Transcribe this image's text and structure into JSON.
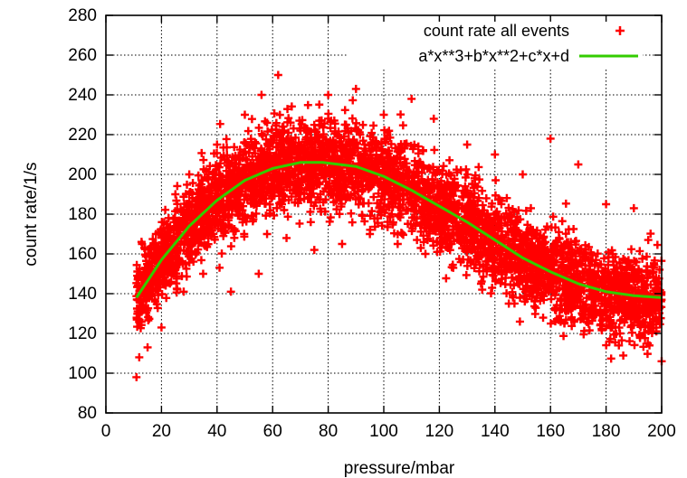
{
  "chart_data": {
    "type": "scatter",
    "title": "",
    "xlabel": "pressure/mbar",
    "ylabel": "count rate/1/s",
    "xlim": [
      0,
      200
    ],
    "ylim": [
      80,
      280
    ],
    "xticks": [
      0,
      20,
      40,
      60,
      80,
      100,
      120,
      140,
      160,
      180,
      200
    ],
    "yticks": [
      80,
      100,
      120,
      140,
      160,
      180,
      200,
      220,
      240,
      260,
      280
    ],
    "grid": true,
    "legend_position": "top-right",
    "series": [
      {
        "name": "count rate all events",
        "kind": "scatter",
        "marker": "+",
        "color": "#ff0000",
        "x_range": [
          11,
          200
        ],
        "points": [
          [
            11,
            98
          ],
          [
            12,
            108
          ],
          [
            13,
            165
          ],
          [
            15,
            113
          ],
          [
            18,
            170
          ],
          [
            20,
            123
          ],
          [
            25,
            190
          ],
          [
            28,
            141
          ],
          [
            30,
            200
          ],
          [
            35,
            150
          ],
          [
            40,
            215
          ],
          [
            45,
            141
          ],
          [
            50,
            230
          ],
          [
            55,
            150
          ],
          [
            56,
            240
          ],
          [
            58,
            170
          ],
          [
            62,
            250
          ],
          [
            65,
            168
          ],
          [
            70,
            222
          ],
          [
            75,
            162
          ],
          [
            80,
            240
          ],
          [
            85,
            165
          ],
          [
            90,
            243
          ],
          [
            95,
            170
          ],
          [
            100,
            230
          ],
          [
            105,
            165
          ],
          [
            110,
            238
          ],
          [
            115,
            160
          ],
          [
            118,
            228
          ],
          [
            125,
            153
          ],
          [
            130,
            215
          ],
          [
            135,
            145
          ],
          [
            140,
            210
          ],
          [
            145,
            135
          ],
          [
            150,
            200
          ],
          [
            155,
            138
          ],
          [
            160,
            218
          ],
          [
            165,
            125
          ],
          [
            170,
            205
          ],
          [
            175,
            130
          ],
          [
            180,
            185
          ],
          [
            185,
            120
          ],
          [
            190,
            183
          ],
          [
            195,
            115
          ],
          [
            198,
            148
          ],
          [
            200,
            106
          ]
        ]
      },
      {
        "name": "a*x**3+b*x**2+c*x+d",
        "kind": "line",
        "color": "#33cc00",
        "x": [
          11,
          20,
          30,
          40,
          50,
          60,
          70,
          78,
          90,
          100,
          110,
          120,
          130,
          140,
          150,
          160,
          170,
          180,
          190,
          200
        ],
        "y": [
          138,
          157,
          174,
          187,
          197,
          203,
          206,
          206,
          204,
          199,
          192,
          184,
          176,
          167,
          158,
          151,
          145,
          141,
          139,
          138
        ]
      }
    ]
  }
}
